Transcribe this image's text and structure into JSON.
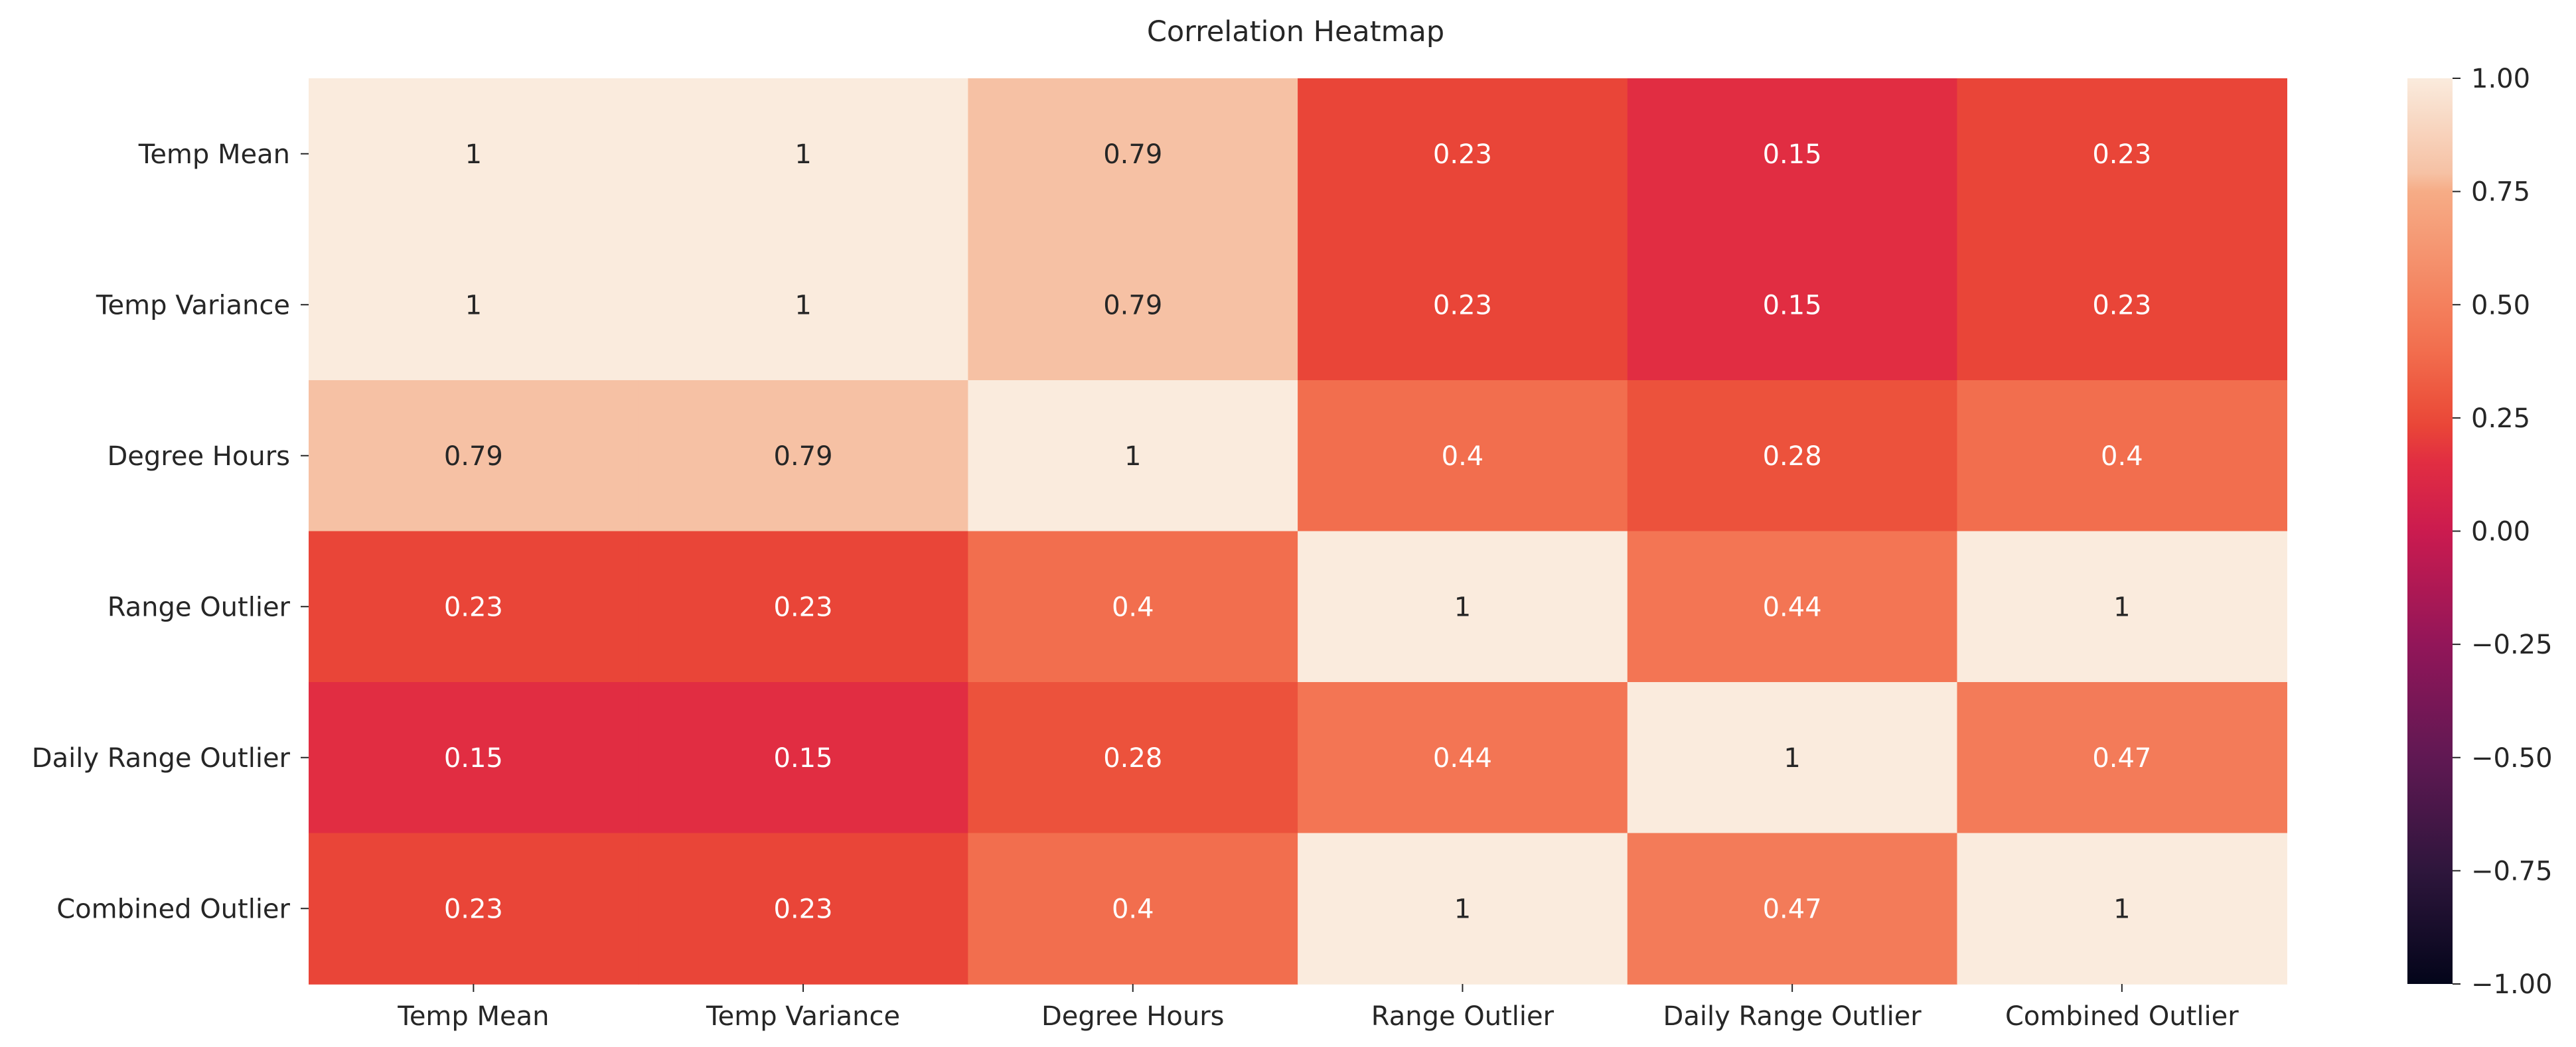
{
  "chart_data": {
    "type": "heatmap",
    "title": "Correlation Heatmap",
    "xlabel": "",
    "ylabel": "",
    "x_labels": [
      "Temp Mean",
      "Temp Variance",
      "Degree Hours",
      "Range Outlier",
      "Daily Range Outlier",
      "Combined Outlier"
    ],
    "y_labels": [
      "Temp Mean",
      "Temp Variance",
      "Degree Hours",
      "Range Outlier",
      "Daily Range Outlier",
      "Combined Outlier"
    ],
    "values": [
      [
        1,
        1,
        0.79,
        0.23,
        0.15,
        0.23
      ],
      [
        1,
        1,
        0.79,
        0.23,
        0.15,
        0.23
      ],
      [
        0.79,
        0.79,
        1,
        0.4,
        0.28,
        0.4
      ],
      [
        0.23,
        0.23,
        0.4,
        1,
        0.44,
        1
      ],
      [
        0.15,
        0.15,
        0.28,
        0.44,
        1,
        0.47
      ],
      [
        0.23,
        0.23,
        0.4,
        1,
        0.47,
        1
      ]
    ],
    "value_labels": [
      [
        "1",
        "1",
        "0.79",
        "0.23",
        "0.15",
        "0.23"
      ],
      [
        "1",
        "1",
        "0.79",
        "0.23",
        "0.15",
        "0.23"
      ],
      [
        "0.79",
        "0.79",
        "1",
        "0.4",
        "0.28",
        "0.4"
      ],
      [
        "0.23",
        "0.23",
        "0.4",
        "1",
        "0.44",
        "1"
      ],
      [
        "0.15",
        "0.15",
        "0.28",
        "0.44",
        "1",
        "0.47"
      ],
      [
        "0.23",
        "0.23",
        "0.4",
        "1",
        "0.47",
        "1"
      ]
    ],
    "colorbar": {
      "range": [
        -1,
        1
      ],
      "ticks": [
        1.0,
        0.75,
        0.5,
        0.25,
        0.0,
        -0.25,
        -0.5,
        -0.75,
        -1.0
      ],
      "tick_labels": [
        "1.00",
        "0.75",
        "0.50",
        "0.25",
        "0.00",
        "−0.25",
        "−0.50",
        "−0.75",
        "−1.00"
      ],
      "colormap": "rocket"
    },
    "grid": false,
    "annotation_colors": {
      "dark_text": "#262626",
      "light_text": "#ffffff"
    }
  }
}
